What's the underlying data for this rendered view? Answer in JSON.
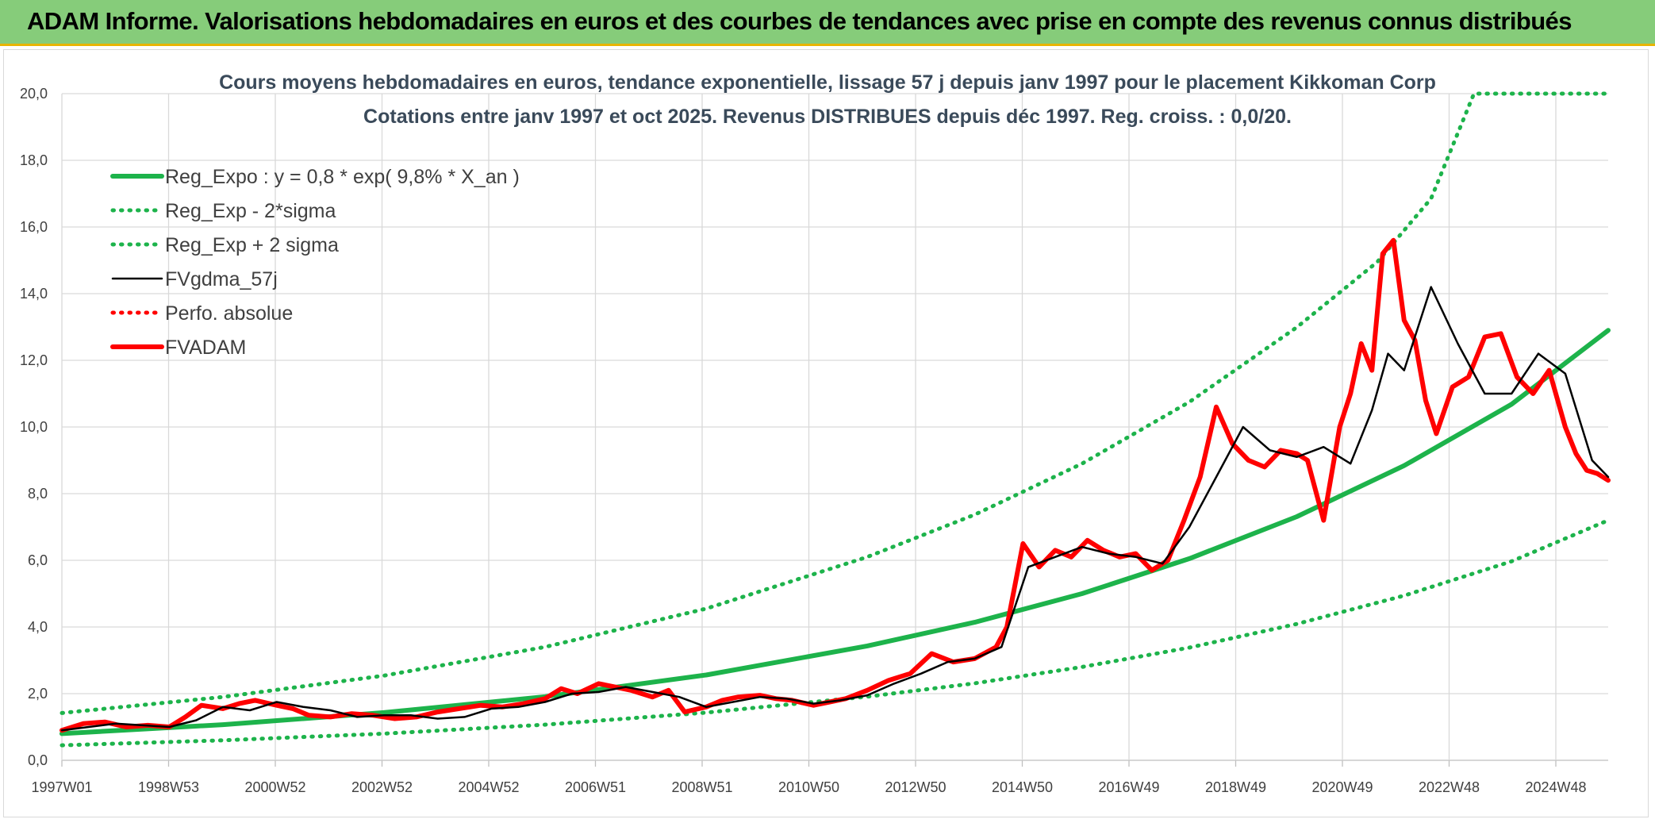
{
  "header": {
    "title": "ADAM Informe. Valorisations hebdomadaires en euros et des courbes de tendances avec prise en compte des revenus connus distribués"
  },
  "chart_data": {
    "type": "line",
    "title": "Cours moyens hebdomadaires en euros, tendance exponentielle, lissage 57 j depuis janv 1997 pour le placement Kikkoman Corp",
    "subtitle": "Cotations entre janv 1997 et oct 2025. Revenus DISTRIBUES depuis déc 1997. Reg. croiss. : 0,0/20.",
    "xlabel": "",
    "ylabel": "",
    "ylim": [
      0,
      20
    ],
    "y_ticks": [
      "0,0",
      "2,0",
      "4,0",
      "6,0",
      "8,0",
      "10,0",
      "12,0",
      "14,0",
      "16,0",
      "18,0",
      "20,0"
    ],
    "x_range": [
      1997.0,
      2025.8
    ],
    "x_tick_labels": [
      "1997W01",
      "1998W53",
      "2000W52",
      "2002W52",
      "2004W52",
      "2006W51",
      "2008W51",
      "2010W50",
      "2012W50",
      "2014W50",
      "2016W49",
      "2018W49",
      "2020W49",
      "2022W48",
      "2024W48"
    ],
    "grid": true,
    "legend_position": "top-left",
    "colors": {
      "reg_expo": "#1db34b",
      "sigma": "#1db34b",
      "fvgdma": "#000000",
      "perfo": "#ff0000",
      "fvadam": "#ff0000",
      "grid": "#d9d9d9",
      "banner": "#86cc7a"
    },
    "series": [
      {
        "name": "Reg_Expo : y = 0,8 * exp( 9,8% *  X_an )",
        "style": "solid-thick",
        "color": "#1db34b",
        "x": [
          1997.0,
          2000.0,
          2003.0,
          2006.0,
          2009.0,
          2012.0,
          2014.0,
          2016.0,
          2018.0,
          2020.0,
          2022.0,
          2024.0,
          2025.8
        ],
        "y": [
          0.8,
          1.07,
          1.43,
          1.91,
          2.56,
          3.43,
          4.14,
          5.0,
          6.05,
          7.31,
          8.84,
          10.68,
          12.9
        ]
      },
      {
        "name": "Reg_Exp - 2*sigma",
        "style": "dotted",
        "color": "#1db34b",
        "x": [
          1997.0,
          2000.0,
          2003.0,
          2006.0,
          2009.0,
          2012.0,
          2014.0,
          2016.0,
          2018.0,
          2020.0,
          2022.0,
          2024.0,
          2025.8
        ],
        "y": [
          0.45,
          0.6,
          0.8,
          1.07,
          1.43,
          1.91,
          2.31,
          2.8,
          3.38,
          4.09,
          4.94,
          5.97,
          7.2
        ]
      },
      {
        "name": "Reg_Exp + 2 sigma",
        "style": "dotted",
        "color": "#1db34b",
        "x": [
          1997.0,
          2000.0,
          2003.0,
          2006.0,
          2009.0,
          2012.0,
          2014.0,
          2016.0,
          2018.0,
          2020.0,
          2021.5,
          2022.5,
          2023.3,
          2025.8
        ],
        "y": [
          1.42,
          1.9,
          2.54,
          3.4,
          4.55,
          6.1,
          7.37,
          8.9,
          10.75,
          12.99,
          14.95,
          16.85,
          20.0,
          20.0
        ]
      },
      {
        "name": "FVgdma_57j",
        "style": "solid",
        "color": "#000000",
        "x": [
          1997.0,
          1997.5,
          1998.0,
          1998.5,
          1999.0,
          1999.5,
          2000.0,
          2000.5,
          2001.0,
          2001.5,
          2002.0,
          2002.5,
          2003.0,
          2003.5,
          2004.0,
          2004.5,
          2005.0,
          2005.5,
          2006.0,
          2006.5,
          2007.0,
          2007.5,
          2008.0,
          2008.5,
          2009.0,
          2009.5,
          2010.0,
          2010.5,
          2011.0,
          2011.5,
          2012.0,
          2012.5,
          2013.0,
          2013.5,
          2014.0,
          2014.5,
          2015.0,
          2015.5,
          2016.0,
          2016.5,
          2017.0,
          2017.5,
          2018.0,
          2018.5,
          2019.0,
          2019.5,
          2020.0,
          2020.5,
          2021.0,
          2021.4,
          2021.7,
          2022.0,
          2022.5,
          2023.0,
          2023.5,
          2024.0,
          2024.5,
          2025.0,
          2025.5,
          2025.8
        ],
        "y": [
          0.9,
          1.0,
          1.1,
          1.05,
          1.0,
          1.2,
          1.6,
          1.5,
          1.75,
          1.6,
          1.5,
          1.3,
          1.35,
          1.35,
          1.25,
          1.3,
          1.55,
          1.6,
          1.75,
          2.0,
          2.05,
          2.2,
          2.05,
          1.9,
          1.6,
          1.75,
          1.9,
          1.85,
          1.7,
          1.8,
          1.95,
          2.3,
          2.6,
          2.95,
          3.05,
          3.4,
          5.8,
          6.1,
          6.4,
          6.2,
          6.1,
          5.9,
          7.0,
          8.5,
          10.0,
          9.3,
          9.1,
          9.4,
          8.9,
          10.5,
          12.2,
          11.7,
          14.2,
          12.5,
          11.0,
          11.0,
          12.2,
          11.6,
          9.0,
          8.5
        ]
      },
      {
        "name": "Perfo. absolue",
        "style": "dotted",
        "color": "#ff0000",
        "x": [],
        "y": []
      },
      {
        "name": "FVADAM",
        "style": "solid-thick",
        "color": "#ff0000",
        "x": [
          1997.0,
          1997.4,
          1997.8,
          1998.2,
          1998.6,
          1999.0,
          1999.3,
          1999.6,
          2000.0,
          2000.3,
          2000.6,
          2001.0,
          2001.3,
          2001.6,
          2002.0,
          2002.4,
          2002.8,
          2003.2,
          2003.6,
          2004.0,
          2004.4,
          2004.8,
          2005.2,
          2005.6,
          2006.0,
          2006.3,
          2006.6,
          2007.0,
          2007.3,
          2007.6,
          2008.0,
          2008.3,
          2008.6,
          2009.0,
          2009.3,
          2009.6,
          2010.0,
          2010.3,
          2010.6,
          2011.0,
          2011.3,
          2011.6,
          2012.0,
          2012.4,
          2012.8,
          2013.2,
          2013.6,
          2014.0,
          2014.4,
          2014.6,
          2014.9,
          2015.2,
          2015.5,
          2015.8,
          2016.1,
          2016.4,
          2016.7,
          2017.0,
          2017.3,
          2017.6,
          2017.9,
          2018.2,
          2018.5,
          2018.8,
          2019.1,
          2019.4,
          2019.7,
          2020.0,
          2020.2,
          2020.5,
          2020.8,
          2021.0,
          2021.2,
          2021.4,
          2021.6,
          2021.8,
          2022.0,
          2022.2,
          2022.4,
          2022.6,
          2022.9,
          2023.2,
          2023.5,
          2023.8,
          2024.1,
          2024.4,
          2024.7,
          2025.0,
          2025.2,
          2025.4,
          2025.6,
          2025.8
        ],
        "y": [
          0.9,
          1.1,
          1.15,
          1.0,
          1.05,
          1.0,
          1.3,
          1.65,
          1.55,
          1.7,
          1.8,
          1.65,
          1.55,
          1.35,
          1.3,
          1.4,
          1.35,
          1.25,
          1.3,
          1.45,
          1.55,
          1.65,
          1.6,
          1.7,
          1.85,
          2.15,
          2.0,
          2.3,
          2.2,
          2.1,
          1.9,
          2.1,
          1.45,
          1.6,
          1.8,
          1.9,
          1.95,
          1.85,
          1.8,
          1.65,
          1.75,
          1.85,
          2.1,
          2.4,
          2.6,
          3.2,
          2.95,
          3.05,
          3.4,
          4.0,
          6.5,
          5.8,
          6.3,
          6.1,
          6.6,
          6.3,
          6.1,
          6.2,
          5.7,
          6.0,
          7.2,
          8.5,
          10.6,
          9.5,
          9.0,
          8.8,
          9.3,
          9.2,
          9.0,
          7.2,
          10.0,
          11.0,
          12.5,
          11.7,
          15.2,
          15.6,
          13.2,
          12.6,
          10.8,
          9.8,
          11.2,
          11.5,
          12.7,
          12.8,
          11.5,
          11.0,
          11.7,
          10.0,
          9.2,
          8.7,
          8.6,
          8.4
        ]
      }
    ]
  }
}
